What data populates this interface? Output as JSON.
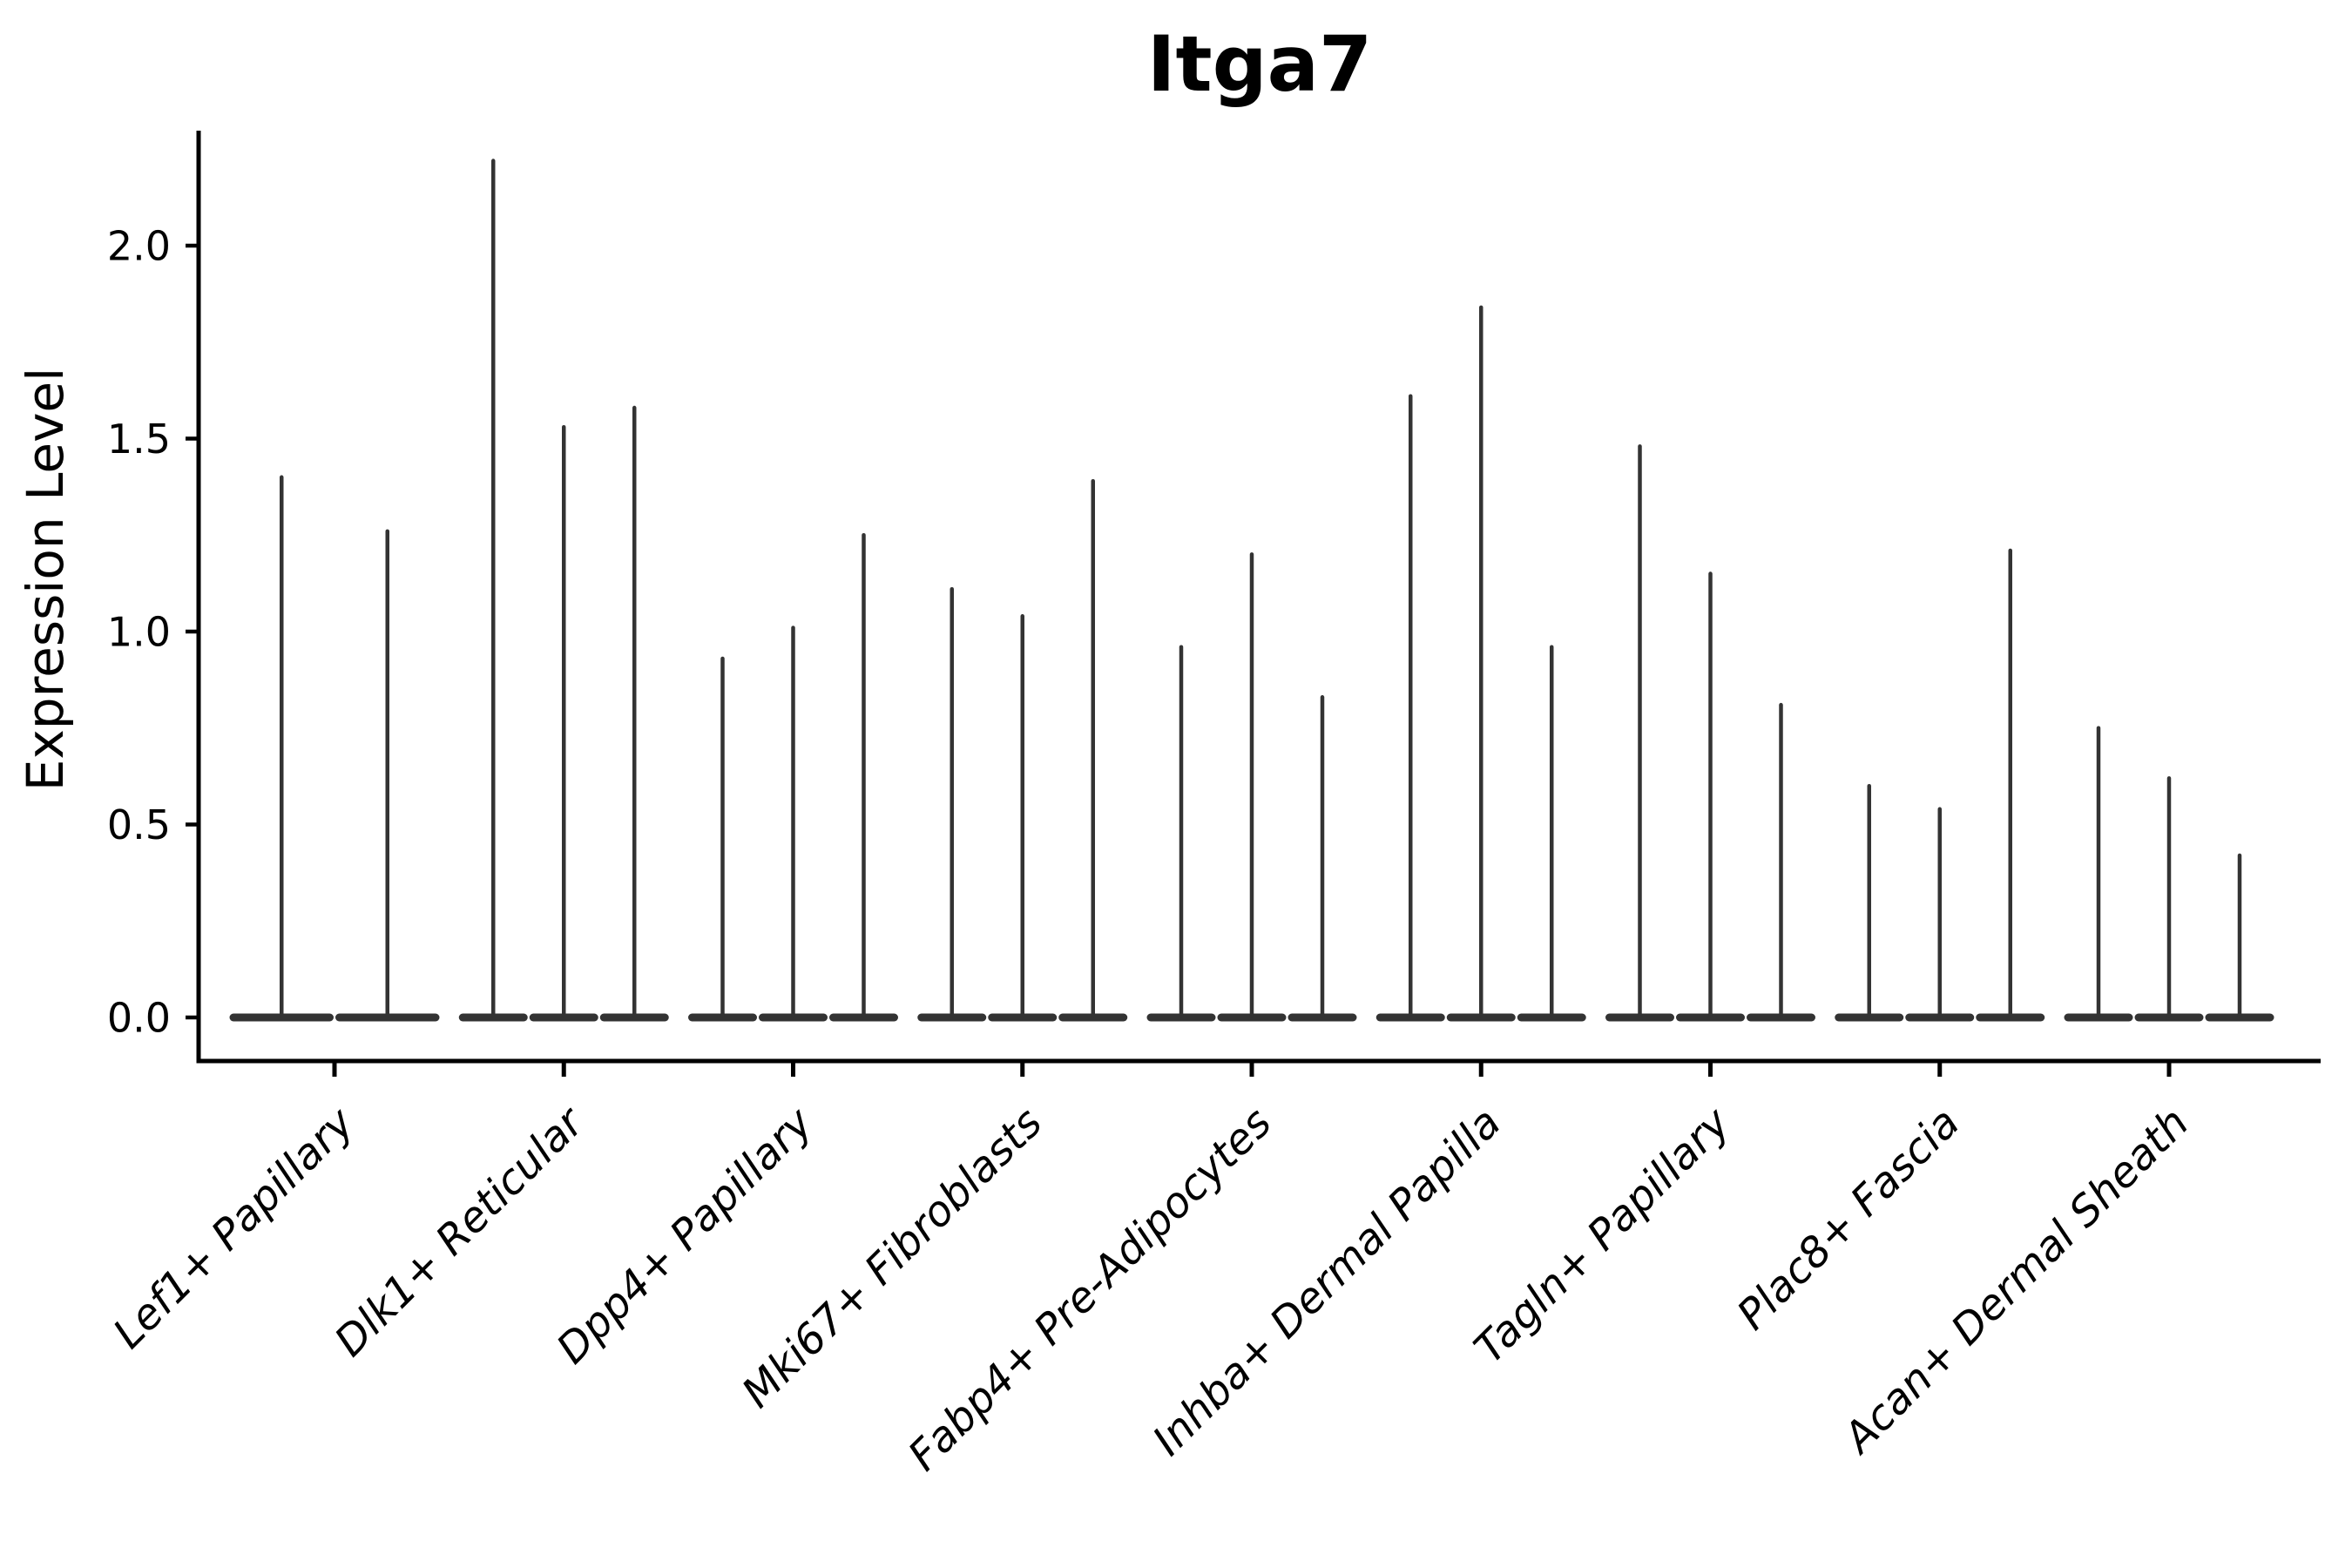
{
  "chart_data": {
    "type": "violin",
    "title": "Itga7",
    "ylabel": "Expression Level",
    "xlabel": "",
    "ylim": [
      0,
      2.3
    ],
    "yticks": [
      0.0,
      0.5,
      1.0,
      1.5,
      2.0
    ],
    "grid": false,
    "legend": "none",
    "violin_color": "#333333",
    "axis_color": "#000000",
    "categories": [
      "Lef1+ Papillary",
      "Dlk1+ Reticular",
      "Dpp4+ Papillary",
      "Mki67+ Fibroblasts",
      "Fabp4+ Pre-Adipocytes",
      "Inhba+ Dermal Papilla",
      "Tagln+ Papillary",
      "Plac8+ Fascia",
      "Acan+ Dermal Sheath"
    ],
    "groups": [
      {
        "category": "Lef1+ Papillary",
        "spike_maxima": [
          1.4,
          1.26
        ]
      },
      {
        "category": "Dlk1+ Reticular",
        "spike_maxima": [
          2.22,
          1.53,
          1.58
        ]
      },
      {
        "category": "Dpp4+ Papillary",
        "spike_maxima": [
          0.93,
          1.01,
          1.25
        ]
      },
      {
        "category": "Mki67+ Fibroblasts",
        "spike_maxima": [
          1.11,
          1.04,
          1.39
        ]
      },
      {
        "category": "Fabp4+ Pre-Adipocytes",
        "spike_maxima": [
          0.96,
          1.2,
          0.83
        ]
      },
      {
        "category": "Inhba+ Dermal Papilla",
        "spike_maxima": [
          1.61,
          1.84,
          0.96
        ]
      },
      {
        "category": "Tagln+ Papillary",
        "spike_maxima": [
          1.48,
          1.15,
          0.81
        ]
      },
      {
        "category": "Plac8+ Fascia",
        "spike_maxima": [
          0.6,
          0.54,
          1.21
        ]
      },
      {
        "category": "Acan+ Dermal Sheath",
        "spike_maxima": [
          0.75,
          0.62,
          0.42
        ]
      }
    ]
  }
}
